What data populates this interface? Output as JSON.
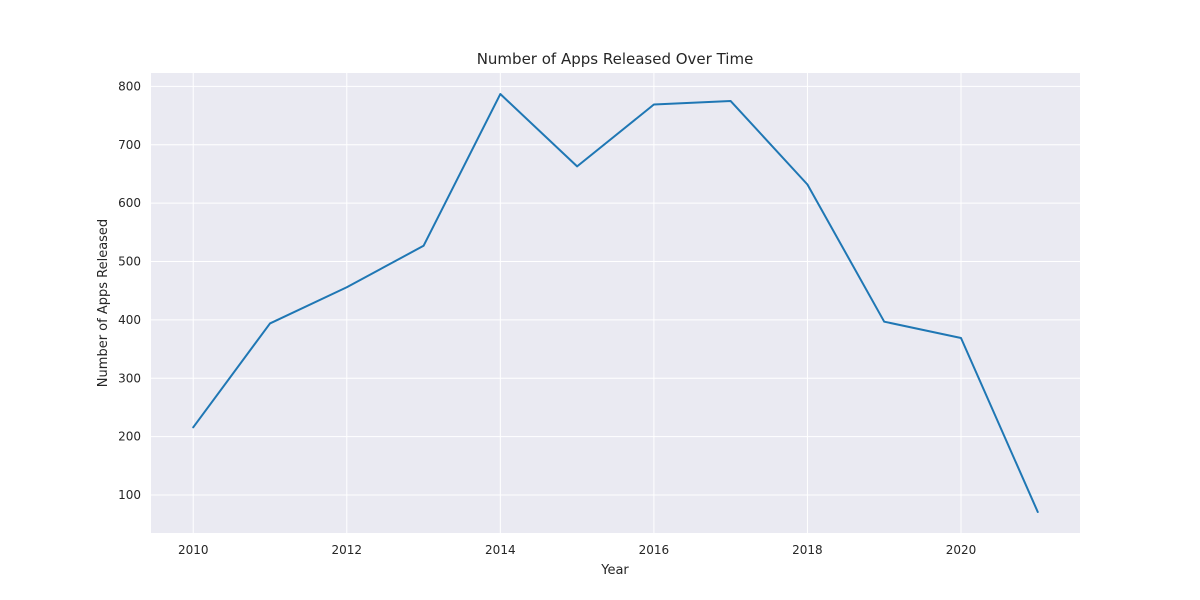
{
  "chart_data": {
    "type": "line",
    "title": "Number of Apps Released Over Time",
    "xlabel": "Year",
    "ylabel": "Number of Apps Released",
    "x": [
      2010,
      2011,
      2012,
      2013,
      2014,
      2015,
      2016,
      2017,
      2018,
      2019,
      2020,
      2021
    ],
    "series": [
      {
        "values": [
          216,
          394,
          456,
          527,
          787,
          663,
          769,
          775,
          632,
          397,
          369,
          71
        ],
        "color": "#1f77b4"
      }
    ],
    "xlim": [
      2009.45,
      2021.55
    ],
    "ylim": [
      35,
      823
    ],
    "x_ticks": [
      "2010",
      "2012",
      "2014",
      "2016",
      "2018",
      "2020"
    ],
    "y_ticks": [
      "100",
      "200",
      "300",
      "400",
      "500",
      "600",
      "700",
      "800"
    ],
    "grid": true,
    "background_color": "#eaeaf2",
    "grid_color": "#ffffff"
  }
}
